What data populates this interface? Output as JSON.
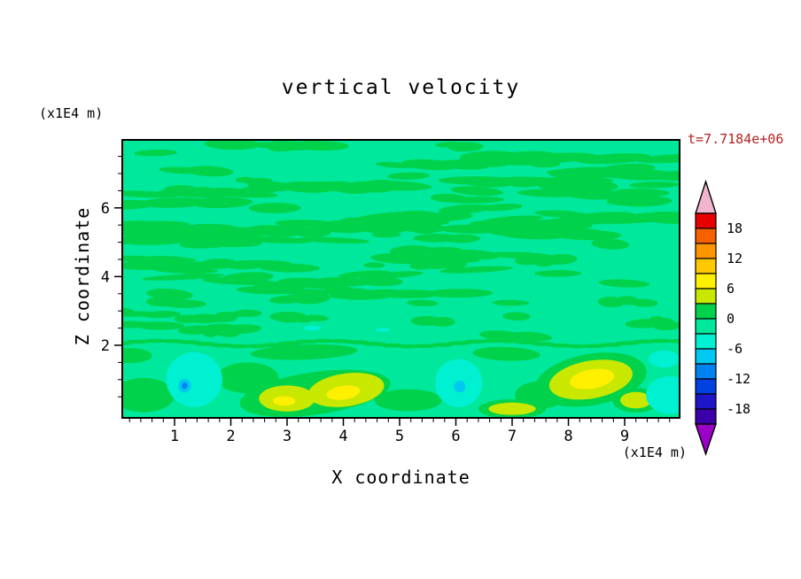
{
  "page": {
    "background": "#ffffff"
  },
  "chart_data": {
    "type": "contour",
    "title": "vertical velocity",
    "annotation": {
      "text": "t=7.7184e+06",
      "color": "#b22222"
    },
    "xlabel": "X coordinate",
    "ylabel": "Z coordinate",
    "x_unit": "(x1E4 m)",
    "y_unit": "(x1E4 m)",
    "xlim": [
      0.06,
      9.99
    ],
    "ylim": [
      -0.14,
      8.0
    ],
    "x_ticks": [
      1,
      2,
      3,
      4,
      5,
      6,
      7,
      8,
      9
    ],
    "y_ticks": [
      2,
      4,
      6
    ],
    "x_minor_step": 0.2,
    "y_minor_step": 0.5,
    "colorbar": {
      "labels": [
        "18",
        "12",
        "6",
        "0",
        "-6",
        "-12",
        "-18"
      ],
      "level_step": 3,
      "top_arrow_color": "#f0b4cd",
      "bottom_arrow_color": "#9b00c8",
      "segment_colors": [
        "#e60000",
        "#f56000",
        "#ff9600",
        "#ffc800",
        "#fff000",
        "#c8e800",
        "#00d24b",
        "#00e89b",
        "#00f0d2",
        "#00c8f0",
        "#0082f0",
        "#0041e1",
        "#1e14c8",
        "#3c00aa"
      ]
    },
    "field": {
      "background_color": "#00e89b",
      "band_color": "#00d24b",
      "palette": {
        "band": "#00d24b",
        "yg": "#c8e800",
        "yellow": "#fff000",
        "cyan": "#00f0d2",
        "lightblue": "#00c8f0",
        "blue": "#0082f0"
      },
      "texture": {
        "seed": 7,
        "count": 110,
        "z_min": 2.25,
        "z_max": 7.9,
        "boundary": {
          "z": 2.05,
          "amp": 0.08,
          "freq": 2.1,
          "step": 0.3,
          "rx": 0.22,
          "ry": 0.06
        }
      },
      "blobs": [
        {
          "color": "band",
          "x": 0.45,
          "z": 0.55,
          "rx": 0.55,
          "ry": 0.5,
          "rot": 0
        },
        {
          "color": "band",
          "x": 2.3,
          "z": 1.05,
          "rx": 0.55,
          "ry": 0.45,
          "rot": 0
        },
        {
          "color": "band",
          "x": 3.3,
          "z": 1.8,
          "rx": 0.95,
          "ry": 0.22,
          "rot": -2
        },
        {
          "color": "band",
          "x": 6.9,
          "z": 1.75,
          "rx": 0.6,
          "ry": 0.2,
          "rot": 2
        },
        {
          "color": "band",
          "x": 0.2,
          "z": 1.7,
          "rx": 0.4,
          "ry": 0.22,
          "rot": 0
        },
        {
          "color": "band",
          "x": 5.15,
          "z": 0.4,
          "rx": 0.6,
          "ry": 0.32,
          "rot": 0
        },
        {
          "color": "band",
          "x": 7.5,
          "z": 0.55,
          "rx": 0.45,
          "ry": 0.4,
          "rot": 0
        },
        {
          "color": "band",
          "x": 3.5,
          "z": 0.6,
          "rx": 1.35,
          "ry": 0.62,
          "rot": -8
        },
        {
          "color": "band",
          "x": 8.4,
          "z": 1.0,
          "rx": 1.0,
          "ry": 0.75,
          "rot": -10
        },
        {
          "color": "band",
          "x": 9.2,
          "z": 0.4,
          "rx": 0.42,
          "ry": 0.36,
          "rot": 0
        },
        {
          "color": "band",
          "x": 7.0,
          "z": 0.15,
          "rx": 0.6,
          "ry": 0.28,
          "rot": 0
        },
        {
          "color": "yg",
          "x": 3.0,
          "z": 0.45,
          "rx": 0.5,
          "ry": 0.38,
          "rot": 0
        },
        {
          "color": "yg",
          "x": 4.05,
          "z": 0.7,
          "rx": 0.68,
          "ry": 0.48,
          "rot": -8
        },
        {
          "color": "yg",
          "x": 8.4,
          "z": 1.0,
          "rx": 0.75,
          "ry": 0.55,
          "rot": -10
        },
        {
          "color": "yg",
          "x": 9.2,
          "z": 0.4,
          "rx": 0.28,
          "ry": 0.24,
          "rot": 0
        },
        {
          "color": "yg",
          "x": 7.0,
          "z": 0.15,
          "rx": 0.42,
          "ry": 0.18,
          "rot": 0
        },
        {
          "color": "yellow",
          "x": 2.95,
          "z": 0.38,
          "rx": 0.2,
          "ry": 0.14,
          "rot": 0
        },
        {
          "color": "yellow",
          "x": 4.0,
          "z": 0.62,
          "rx": 0.3,
          "ry": 0.2,
          "rot": -8
        },
        {
          "color": "yellow",
          "x": 8.42,
          "z": 1.02,
          "rx": 0.4,
          "ry": 0.28,
          "rot": -10
        },
        {
          "color": "cyan",
          "x": 1.35,
          "z": 1.0,
          "rx": 0.5,
          "ry": 0.8,
          "rot": 12
        },
        {
          "color": "cyan",
          "x": 6.05,
          "z": 0.9,
          "rx": 0.42,
          "ry": 0.7,
          "rot": -6
        },
        {
          "color": "cyan",
          "x": 9.8,
          "z": 0.55,
          "rx": 0.42,
          "ry": 0.55,
          "rot": 0
        },
        {
          "color": "cyan",
          "x": 9.7,
          "z": 1.6,
          "rx": 0.28,
          "ry": 0.25,
          "rot": 0
        },
        {
          "color": "cyan",
          "x": 3.45,
          "z": 2.5,
          "rx": 0.16,
          "ry": 0.07,
          "rot": 0
        },
        {
          "color": "cyan",
          "x": 4.7,
          "z": 2.45,
          "rx": 0.13,
          "ry": 0.06,
          "rot": 0
        },
        {
          "color": "lightblue",
          "x": 1.18,
          "z": 0.82,
          "rx": 0.11,
          "ry": 0.2,
          "rot": 18
        },
        {
          "color": "lightblue",
          "x": 6.07,
          "z": 0.8,
          "rx": 0.1,
          "ry": 0.17,
          "rot": -10
        },
        {
          "color": "blue",
          "x": 1.18,
          "z": 0.82,
          "rx": 0.05,
          "ry": 0.1,
          "rot": 18
        }
      ]
    }
  }
}
